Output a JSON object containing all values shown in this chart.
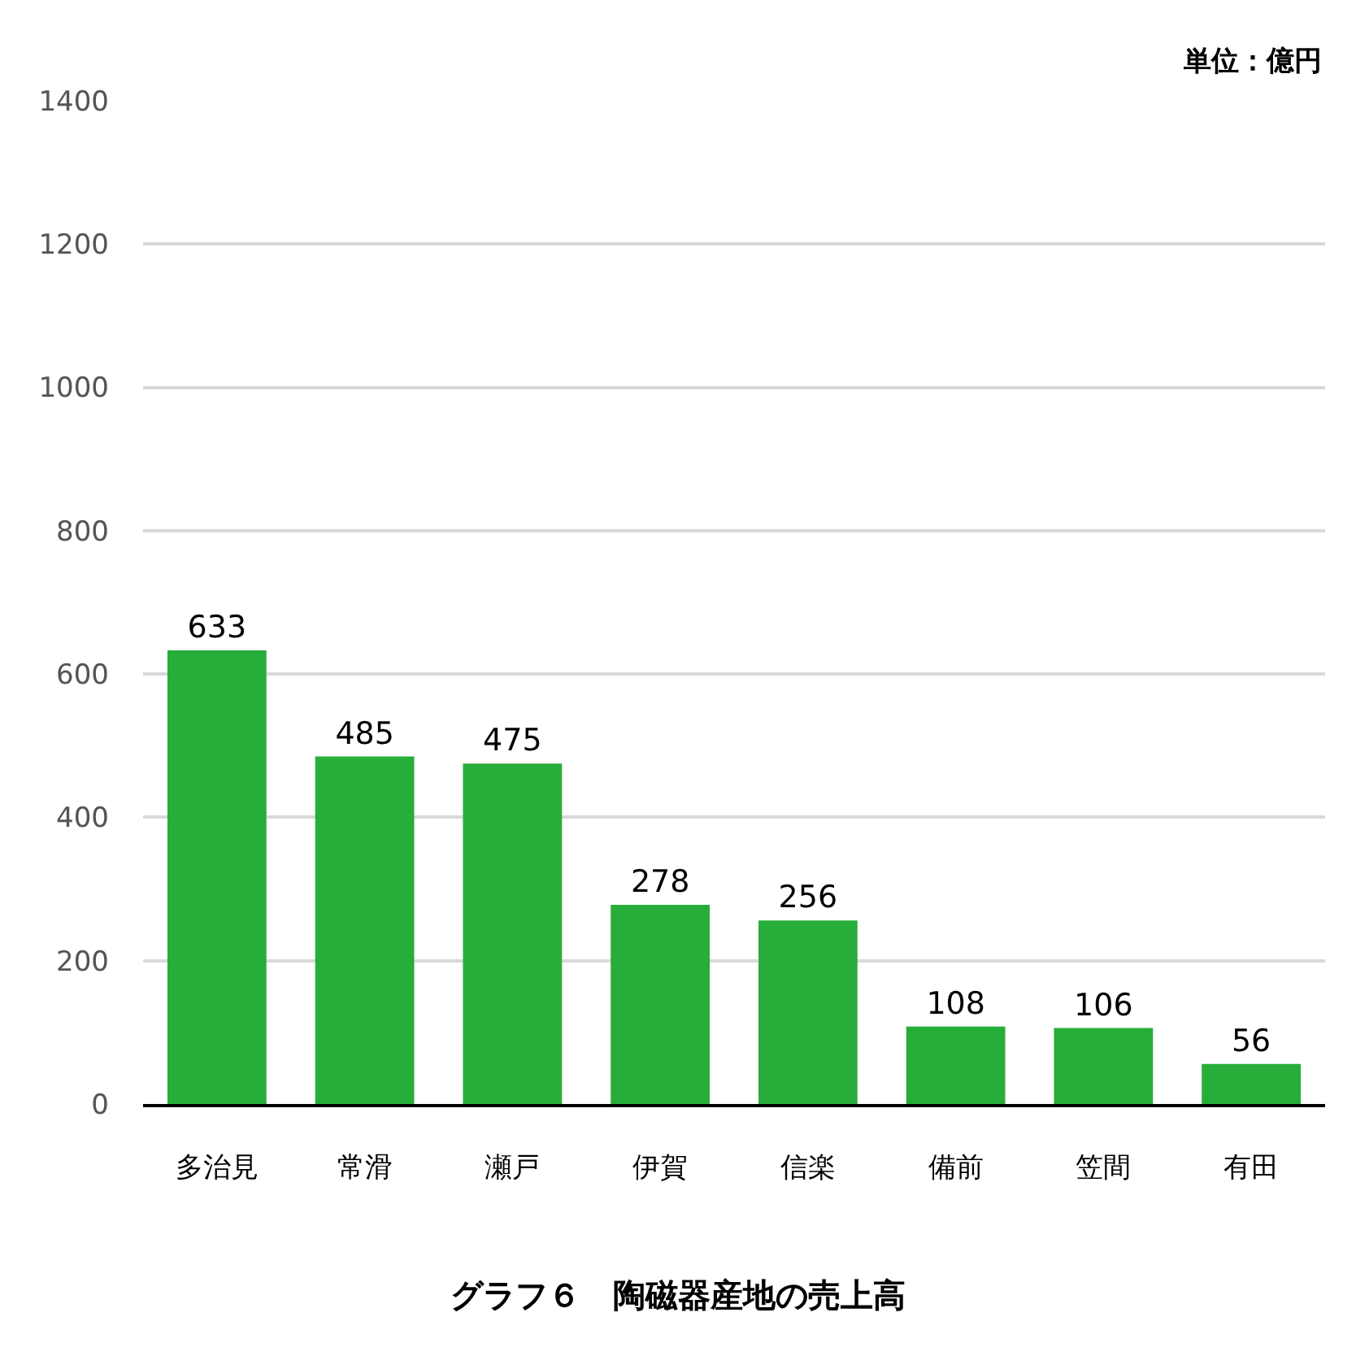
{
  "chart_data": {
    "type": "bar",
    "title": "グラフ６　陶磁器産地の売上高",
    "categories": [
      "多治見",
      "常滑",
      "瀬戸",
      "伊賀",
      "信楽",
      "備前",
      "笠間",
      "有田"
    ],
    "values": [
      633,
      485,
      475,
      278,
      256,
      108,
      106,
      56
    ],
    "color": "#27ad3a",
    "ylim": [
      0,
      1400
    ],
    "yticks": [
      0,
      200,
      400,
      600,
      800,
      1000,
      1200,
      1400
    ],
    "grid": "y",
    "data_labels": true,
    "legend": false,
    "annotations": [
      "単位：億円"
    ]
  }
}
